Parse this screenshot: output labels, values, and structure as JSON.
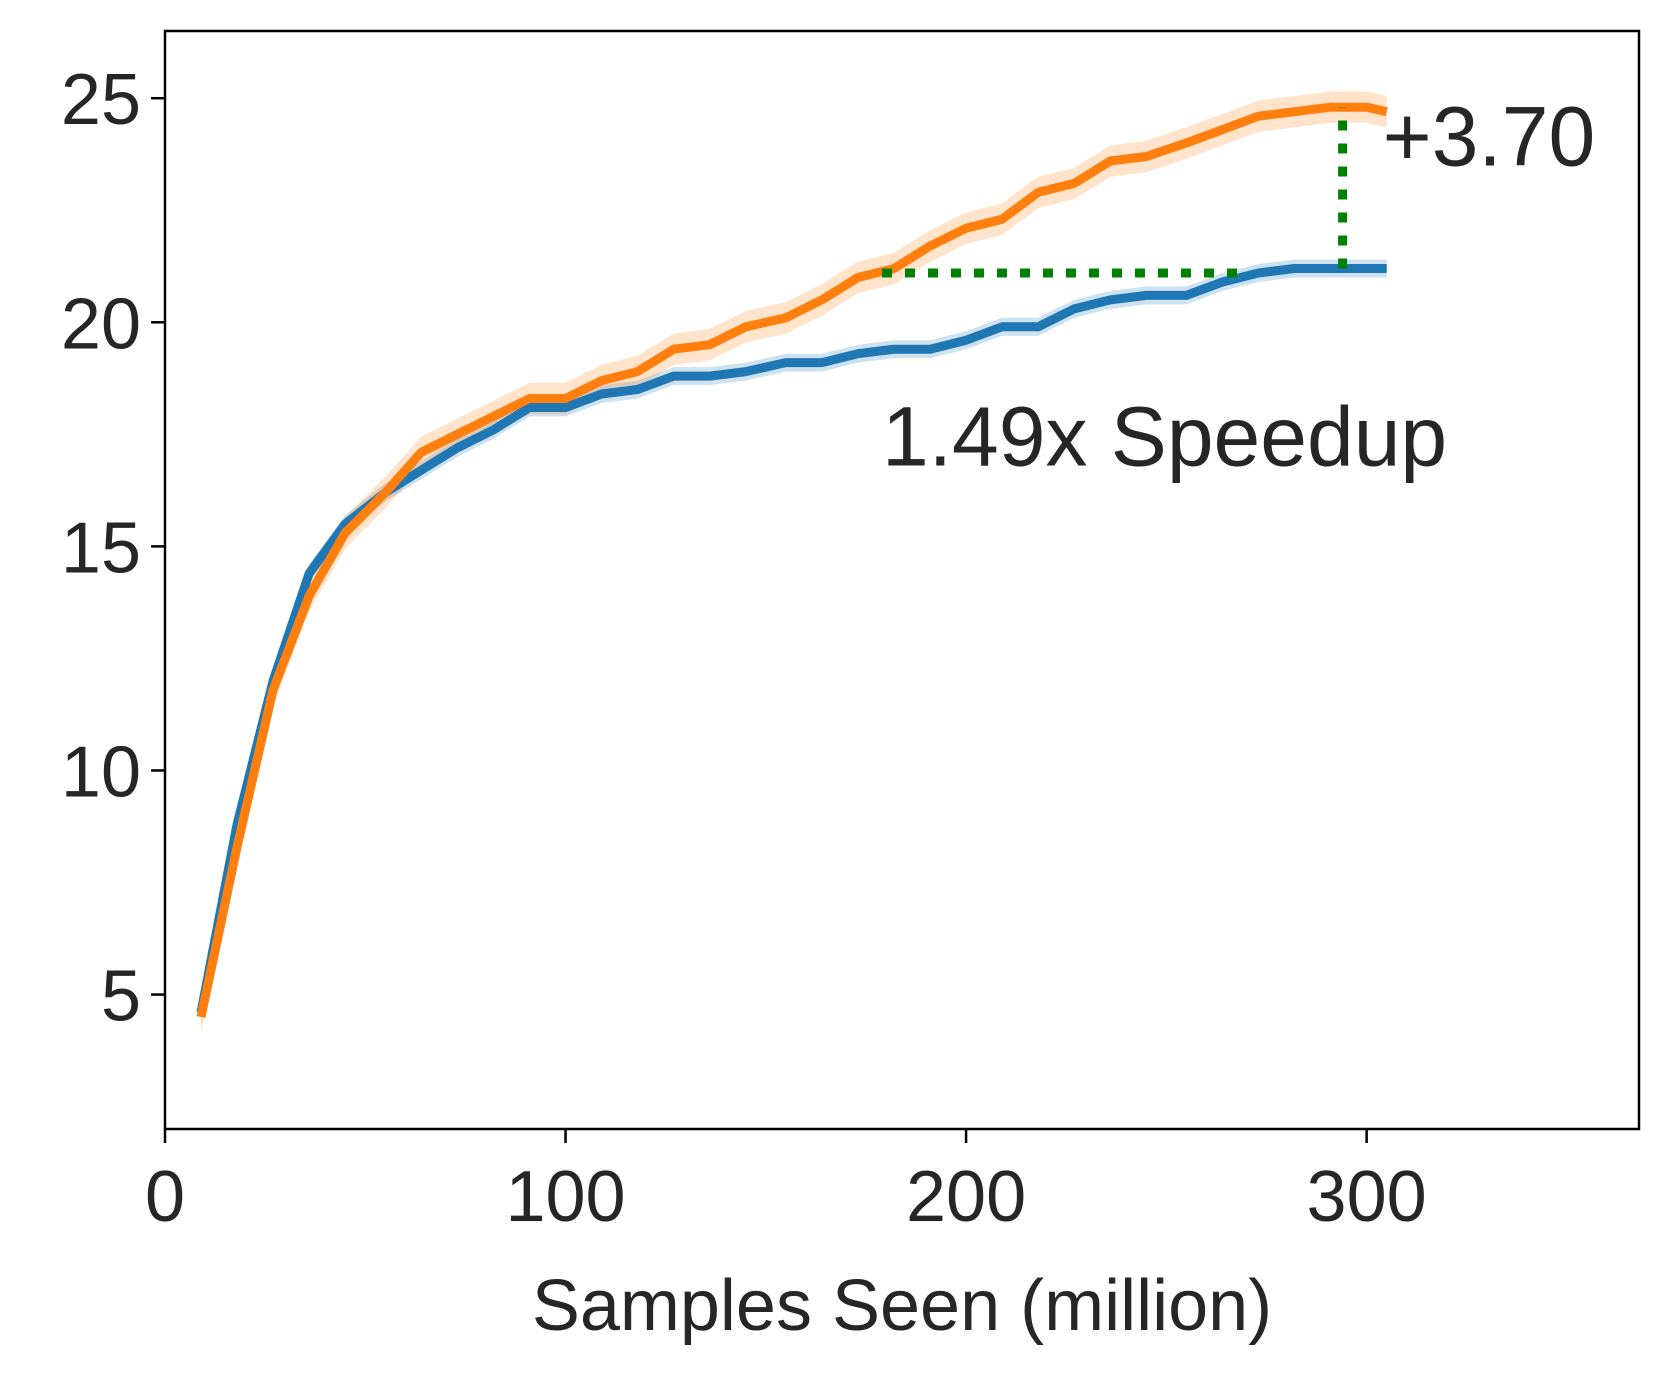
{
  "chart_data": {
    "type": "line",
    "title": "",
    "xlabel": "Samples Seen (million)",
    "ylabel": "",
    "xlim": [
      0,
      368
    ],
    "ylim": [
      2.0,
      26.5
    ],
    "xticks": [
      0,
      100,
      200,
      300
    ],
    "yticks": [
      5,
      10,
      15,
      20,
      25
    ],
    "xtick_labels": [
      "0",
      "100",
      "200",
      "300"
    ],
    "ytick_labels": [
      "5",
      "10",
      "15",
      "20",
      "25"
    ],
    "grid": false,
    "legend": "none",
    "x": [
      9,
      18,
      27,
      36,
      45,
      55,
      64,
      73,
      82,
      91,
      100,
      109,
      118,
      127,
      136,
      145,
      155,
      164,
      173,
      182,
      191,
      200,
      209,
      218,
      227,
      236,
      245,
      255,
      264,
      273,
      282,
      291,
      300,
      305
    ],
    "series": [
      {
        "color": "#1f77b4",
        "band": 0.2,
        "values": [
          4.6,
          8.8,
          12.0,
          14.4,
          15.5,
          16.2,
          16.7,
          17.2,
          17.6,
          18.1,
          18.1,
          18.4,
          18.5,
          18.8,
          18.8,
          18.9,
          19.1,
          19.1,
          19.3,
          19.4,
          19.4,
          19.6,
          19.9,
          19.9,
          20.3,
          20.5,
          20.6,
          20.6,
          20.9,
          21.1,
          21.2,
          21.2,
          21.2,
          21.2
        ]
      },
      {
        "color": "#ff7f0e",
        "band": 0.35,
        "values": [
          4.5,
          8.3,
          11.8,
          13.9,
          15.3,
          16.2,
          17.1,
          17.5,
          17.9,
          18.3,
          18.3,
          18.7,
          18.9,
          19.4,
          19.5,
          19.9,
          20.1,
          20.5,
          21.0,
          21.2,
          21.7,
          22.1,
          22.3,
          22.9,
          23.1,
          23.6,
          23.7,
          24.0,
          24.3,
          24.6,
          24.7,
          24.8,
          24.8,
          24.7
        ]
      }
    ],
    "annotations": [
      {
        "text": "+3.70",
        "x": 304,
        "y": 23.5
      },
      {
        "text": "1.49x Speedup",
        "x": 179,
        "y": 16.8
      }
    ],
    "guides": {
      "color": "#008000",
      "horizontal": {
        "x_start": 179,
        "x_end": 268,
        "y": 21.1
      },
      "vertical": {
        "x": 294,
        "y_start": 21.2,
        "y_end": 24.8
      }
    }
  }
}
